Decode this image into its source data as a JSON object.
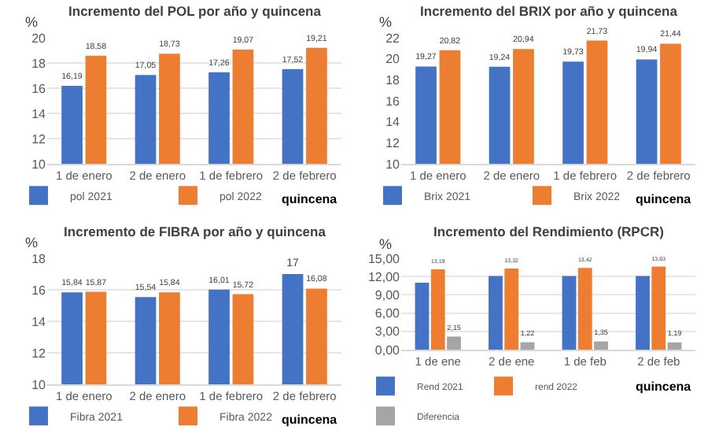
{
  "chart_data": [
    {
      "type": "bar",
      "title": "Incremento del POL por año y quincena",
      "ylabel": "%",
      "xlabel": "quincena",
      "categories": [
        "1 de enero",
        "2 de enero",
        "1 de febrero",
        "2 de febrero"
      ],
      "ylim": [
        10,
        20
      ],
      "yticks": [
        10,
        12,
        14,
        16,
        18,
        20
      ],
      "grid": "y",
      "legend": "bottom left",
      "series": [
        {
          "name": "pol 2021",
          "color": "#4472c4",
          "values": [
            16.19,
            17.05,
            17.26,
            17.52
          ],
          "value_labels": [
            "16,19",
            "17,05",
            "17,26",
            "17,52"
          ]
        },
        {
          "name": "pol 2022",
          "color": "#ed7d31",
          "values": [
            18.58,
            18.73,
            19.07,
            19.21
          ],
          "value_labels": [
            "18,58",
            "18,73",
            "19,07",
            "19,21"
          ]
        }
      ]
    },
    {
      "type": "bar",
      "title": "Incremento del BRIX por año y quincena",
      "ylabel": "%",
      "xlabel": "quincena",
      "categories": [
        "1 de enero",
        "2 de enero",
        "1 de febrero",
        "2 de febrero"
      ],
      "ylim": [
        10,
        22
      ],
      "yticks": [
        10,
        12,
        14,
        16,
        18,
        20,
        22
      ],
      "grid": false,
      "legend": "bottom left",
      "series": [
        {
          "name": "Brix 2021",
          "color": "#4472c4",
          "values": [
            19.27,
            19.24,
            19.73,
            19.94
          ],
          "value_labels": [
            "19,27",
            "19,24",
            "19,73",
            "19,94"
          ]
        },
        {
          "name": "Brix 2022",
          "color": "#ed7d31",
          "values": [
            20.82,
            20.94,
            21.73,
            21.44
          ],
          "value_labels": [
            "20,82",
            "20,94",
            "21,73",
            "21,44"
          ]
        }
      ]
    },
    {
      "type": "bar",
      "title": "Incremento de FIBRA por año y quincena",
      "ylabel": "%",
      "xlabel": "quincena",
      "categories": [
        "1 de enero",
        "2 de enero",
        "1 de febrero",
        "2 de febrero"
      ],
      "ylim": [
        10,
        18
      ],
      "yticks": [
        10,
        12,
        14,
        16,
        18
      ],
      "grid": "y",
      "legend": "bottom left",
      "series": [
        {
          "name": "Fibra 2021",
          "color": "#4472c4",
          "values": [
            15.84,
            15.54,
            16.01,
            17
          ],
          "value_labels": [
            "15,84",
            "15,54",
            "16,01",
            "17"
          ]
        },
        {
          "name": "Fibra 2022",
          "color": "#ed7d31",
          "values": [
            15.87,
            15.84,
            15.72,
            16.08
          ],
          "value_labels": [
            "15,87",
            "15,84",
            "15,72",
            "16,08"
          ]
        }
      ]
    },
    {
      "type": "bar",
      "title": "Incremento del Rendimiento (RPCR)",
      "ylabel": "%",
      "xlabel": "quincena",
      "categories": [
        "1 de ene",
        "2 de ene",
        "1 de feb",
        "2 de feb"
      ],
      "ylim": [
        0,
        15
      ],
      "yticks": [
        {
          "value": 0,
          "label": "0,00"
        },
        {
          "value": 3,
          "label": "3,00"
        },
        {
          "value": 6,
          "label": "6,00"
        },
        {
          "value": 9,
          "label": "9,00"
        },
        {
          "value": 12,
          "label": "12,00"
        },
        {
          "value": 15,
          "label": "15,00"
        }
      ],
      "grid": "y",
      "legend": "bottom",
      "series": [
        {
          "name": "Rend 2021",
          "color": "#4472c4",
          "values": [
            11.0,
            12.1,
            12.1,
            12.1
          ]
        },
        {
          "name": "rend 2022",
          "color": "#ed7d31",
          "values": [
            13.19,
            13.32,
            13.42,
            13.63
          ],
          "value_labels": [
            "13,19",
            "13,32",
            "13,42",
            "13,63"
          ]
        },
        {
          "name": "Diferencia",
          "color": "#a5a5a5",
          "values": [
            2.15,
            1.22,
            1.35,
            1.19
          ],
          "value_labels": [
            "2,15",
            "1,22",
            "1,35",
            "1,19"
          ]
        }
      ]
    }
  ]
}
